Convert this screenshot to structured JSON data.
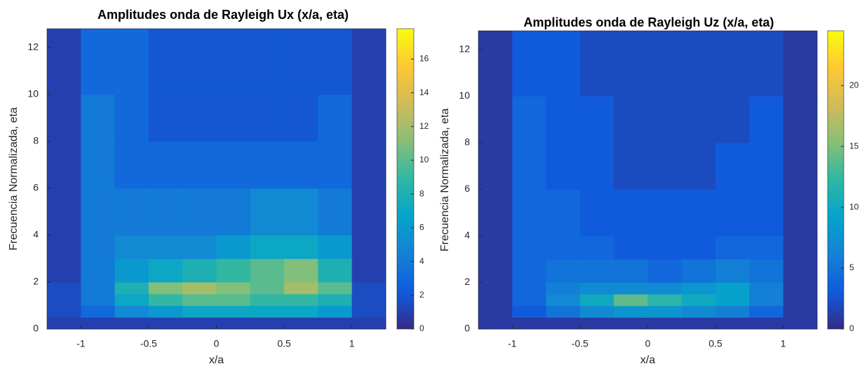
{
  "chart_data": [
    {
      "type": "heatmap",
      "title": "Amplitudes onda de Rayleigh Ux (x/a, eta)",
      "xlabel": "x/a",
      "ylabel": "Frecuencia Normalizada, eta",
      "xlim": [
        -1.25,
        1.25
      ],
      "ylim": [
        0,
        12.8
      ],
      "xticks": [
        -1,
        -0.5,
        0,
        0.5,
        1
      ],
      "yticks": [
        0,
        2,
        4,
        6,
        8,
        10,
        12
      ],
      "xbins": [
        -1.25,
        -1,
        -0.75,
        -0.5,
        -0.25,
        0,
        0.25,
        0.5,
        0.75,
        1,
        1.25
      ],
      "ybins": [
        0,
        0.5,
        1,
        1.5,
        2,
        3,
        4,
        6,
        8,
        10,
        12.8
      ],
      "z": [
        [
          1,
          1,
          1,
          1,
          1,
          1,
          1,
          1,
          1,
          1
        ],
        [
          1.5,
          3,
          5,
          6,
          7,
          7,
          7,
          7,
          6,
          1.5
        ],
        [
          1.5,
          4,
          7,
          9,
          10,
          10,
          9,
          9,
          8,
          1.5
        ],
        [
          1.5,
          4,
          8,
          11,
          12,
          11,
          10,
          12,
          10,
          1.5
        ],
        [
          1,
          4,
          6,
          7,
          8,
          9,
          10,
          11,
          8,
          1
        ],
        [
          1,
          4,
          5,
          5,
          5,
          6,
          7,
          7,
          6,
          1
        ],
        [
          1,
          4,
          4,
          4,
          4,
          4,
          5,
          5,
          4,
          1
        ],
        [
          1,
          4,
          3,
          3,
          3,
          3,
          3,
          3,
          3,
          1
        ],
        [
          1,
          4,
          3,
          2,
          2,
          2,
          2,
          2,
          3,
          1
        ],
        [
          1,
          3,
          3,
          2,
          2,
          2,
          2,
          2,
          2,
          1
        ]
      ],
      "clim": [
        0,
        17.8
      ],
      "cticks": [
        0,
        2,
        4,
        6,
        8,
        10,
        12,
        14,
        16
      ],
      "colormap": [
        "#352a87",
        "#0f5cdd",
        "#1481d6",
        "#06a4ca",
        "#2eb7a4",
        "#87bf77",
        "#d1bb59",
        "#fec832",
        "#f9fb0e"
      ]
    },
    {
      "type": "heatmap",
      "title": "Amplitudes onda de Rayleigh Uz (x/a, eta)",
      "xlabel": "x/a",
      "ylabel": "Frecuencia Normalizada, eta",
      "xlim": [
        -1.25,
        1.25
      ],
      "ylim": [
        0,
        12.8
      ],
      "xticks": [
        -1,
        -0.5,
        0,
        0.5,
        1
      ],
      "yticks": [
        0,
        2,
        4,
        6,
        8,
        10,
        12
      ],
      "xbins": [
        -1.25,
        -1,
        -0.75,
        -0.5,
        -0.25,
        0,
        0.25,
        0.5,
        0.75,
        1,
        1.25
      ],
      "ybins": [
        0,
        0.5,
        1,
        1.5,
        2,
        3,
        4,
        6,
        8,
        10,
        12.8
      ],
      "z": [
        [
          1,
          1,
          1,
          1,
          1,
          1,
          1,
          1,
          1,
          1
        ],
        [
          1,
          3,
          5,
          7,
          8,
          8,
          7,
          6,
          4,
          1
        ],
        [
          1,
          4,
          7,
          10,
          14,
          12,
          10,
          9,
          6,
          1
        ],
        [
          1,
          4,
          6,
          7,
          7,
          7,
          8,
          9,
          6,
          1
        ],
        [
          1,
          4,
          5,
          5,
          5,
          4,
          5,
          6,
          5,
          1
        ],
        [
          1,
          4,
          4,
          4,
          3,
          3,
          3,
          4,
          4,
          1
        ],
        [
          1,
          4,
          4,
          3,
          3,
          3,
          3,
          3,
          3,
          1
        ],
        [
          1,
          4,
          3,
          3,
          2,
          2,
          2,
          3,
          3,
          1
        ],
        [
          1,
          4,
          3,
          3,
          2,
          2,
          2,
          2,
          3,
          1
        ],
        [
          1,
          3,
          3,
          2,
          2,
          2,
          2,
          2,
          2,
          1
        ]
      ],
      "clim": [
        0,
        24.5
      ],
      "cticks": [
        0,
        5,
        10,
        15,
        20
      ],
      "colormap": [
        "#352a87",
        "#0f5cdd",
        "#1481d6",
        "#06a4ca",
        "#2eb7a4",
        "#87bf77",
        "#d1bb59",
        "#fec832",
        "#f9fb0e"
      ]
    }
  ]
}
